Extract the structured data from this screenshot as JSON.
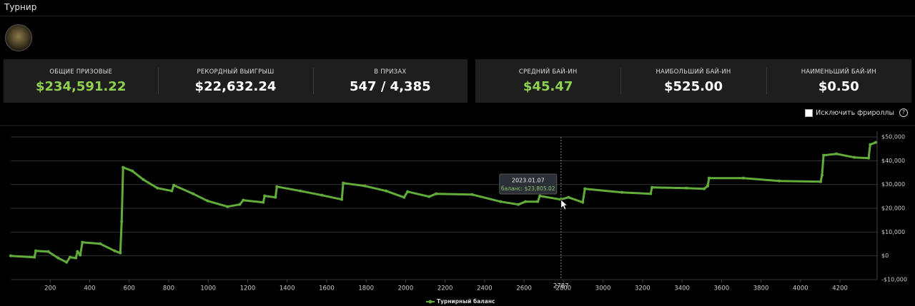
{
  "header": {
    "title": "Турнир"
  },
  "stats_left": [
    {
      "label": "ОБЩИЕ ПРИЗОВЫЕ",
      "value": "$234,591.22"
    },
    {
      "label": "РЕКОРДНЫЙ ВЫИГРЫШ",
      "value": "$22,632.24"
    },
    {
      "label": "В ПРИЗАХ",
      "value": "547 / 4,385"
    }
  ],
  "stats_right": [
    {
      "label": "СРЕДНИЙ БАЙ-ИН",
      "value": "$45.47"
    },
    {
      "label": "НАИБОЛЬШИЙ БАЙ-ИН",
      "value": "$525.00"
    },
    {
      "label": "НАИМЕНЬШИЙ БАЙ-ИН",
      "value": "$0.50"
    }
  ],
  "filter": {
    "label": "Исключить фрироллы"
  },
  "chart_data": {
    "type": "line",
    "x": [
      0,
      120,
      127,
      190,
      240,
      283,
      300,
      330,
      338,
      352,
      363,
      453,
      526,
      555,
      562,
      569,
      616,
      671,
      743,
      816,
      826,
      924,
      997,
      1098,
      1160,
      1178,
      1279,
      1286,
      1341,
      1348,
      1467,
      1576,
      1677,
      1684,
      1793,
      1901,
      1992,
      2010,
      2119,
      2155,
      2336,
      2481,
      2571,
      2607,
      2669,
      2680,
      2785,
      2825,
      2897,
      2908,
      3096,
      3241,
      3248,
      3422,
      3512,
      3530,
      3537,
      3711,
      3892,
      4102,
      4109,
      4117,
      4182,
      4273,
      4345,
      4353,
      4381
    ],
    "series": [
      {
        "name": "Турнирный баланс",
        "color": "#62ad3a",
        "values": [
          0,
          -600,
          2100,
          1800,
          -900,
          -2700,
          -600,
          -900,
          1800,
          300,
          5700,
          5100,
          2100,
          1200,
          14400,
          37200,
          35700,
          32100,
          28500,
          27300,
          29700,
          26100,
          23100,
          20700,
          21600,
          23400,
          22500,
          25200,
          24600,
          29100,
          27300,
          25500,
          23700,
          30600,
          29400,
          27300,
          24600,
          27000,
          24900,
          26100,
          25800,
          22800,
          21600,
          22800,
          22800,
          25200,
          23700,
          24600,
          22500,
          28200,
          26700,
          26100,
          28800,
          28500,
          28200,
          29400,
          32700,
          32700,
          31500,
          31200,
          33900,
          42300,
          42900,
          41400,
          41100,
          46800,
          47700
        ]
      }
    ],
    "xlim": [
      0,
      4388
    ],
    "xticks": [
      200,
      400,
      600,
      800,
      1000,
      1200,
      1400,
      1600,
      1800,
      2000,
      2200,
      2400,
      2600,
      2800,
      3000,
      3200,
      3400,
      3600,
      3800,
      4000,
      4200
    ],
    "ylim": [
      -10000,
      50000
    ],
    "yticks": [
      {
        "value": -10000,
        "label": "-$10,000"
      },
      {
        "value": 0,
        "label": "$0"
      },
      {
        "value": 10000,
        "label": "$10,000"
      },
      {
        "value": 20000,
        "label": "$20,000"
      },
      {
        "value": 30000,
        "label": "$30,000"
      },
      {
        "value": 40000,
        "label": "$40,000"
      },
      {
        "value": 50000,
        "label": "$50,000"
      }
    ],
    "grid": true,
    "tooltip": {
      "title": "2023.01.07",
      "text": "баланс: $23,805.02",
      "x": 2787
    }
  }
}
